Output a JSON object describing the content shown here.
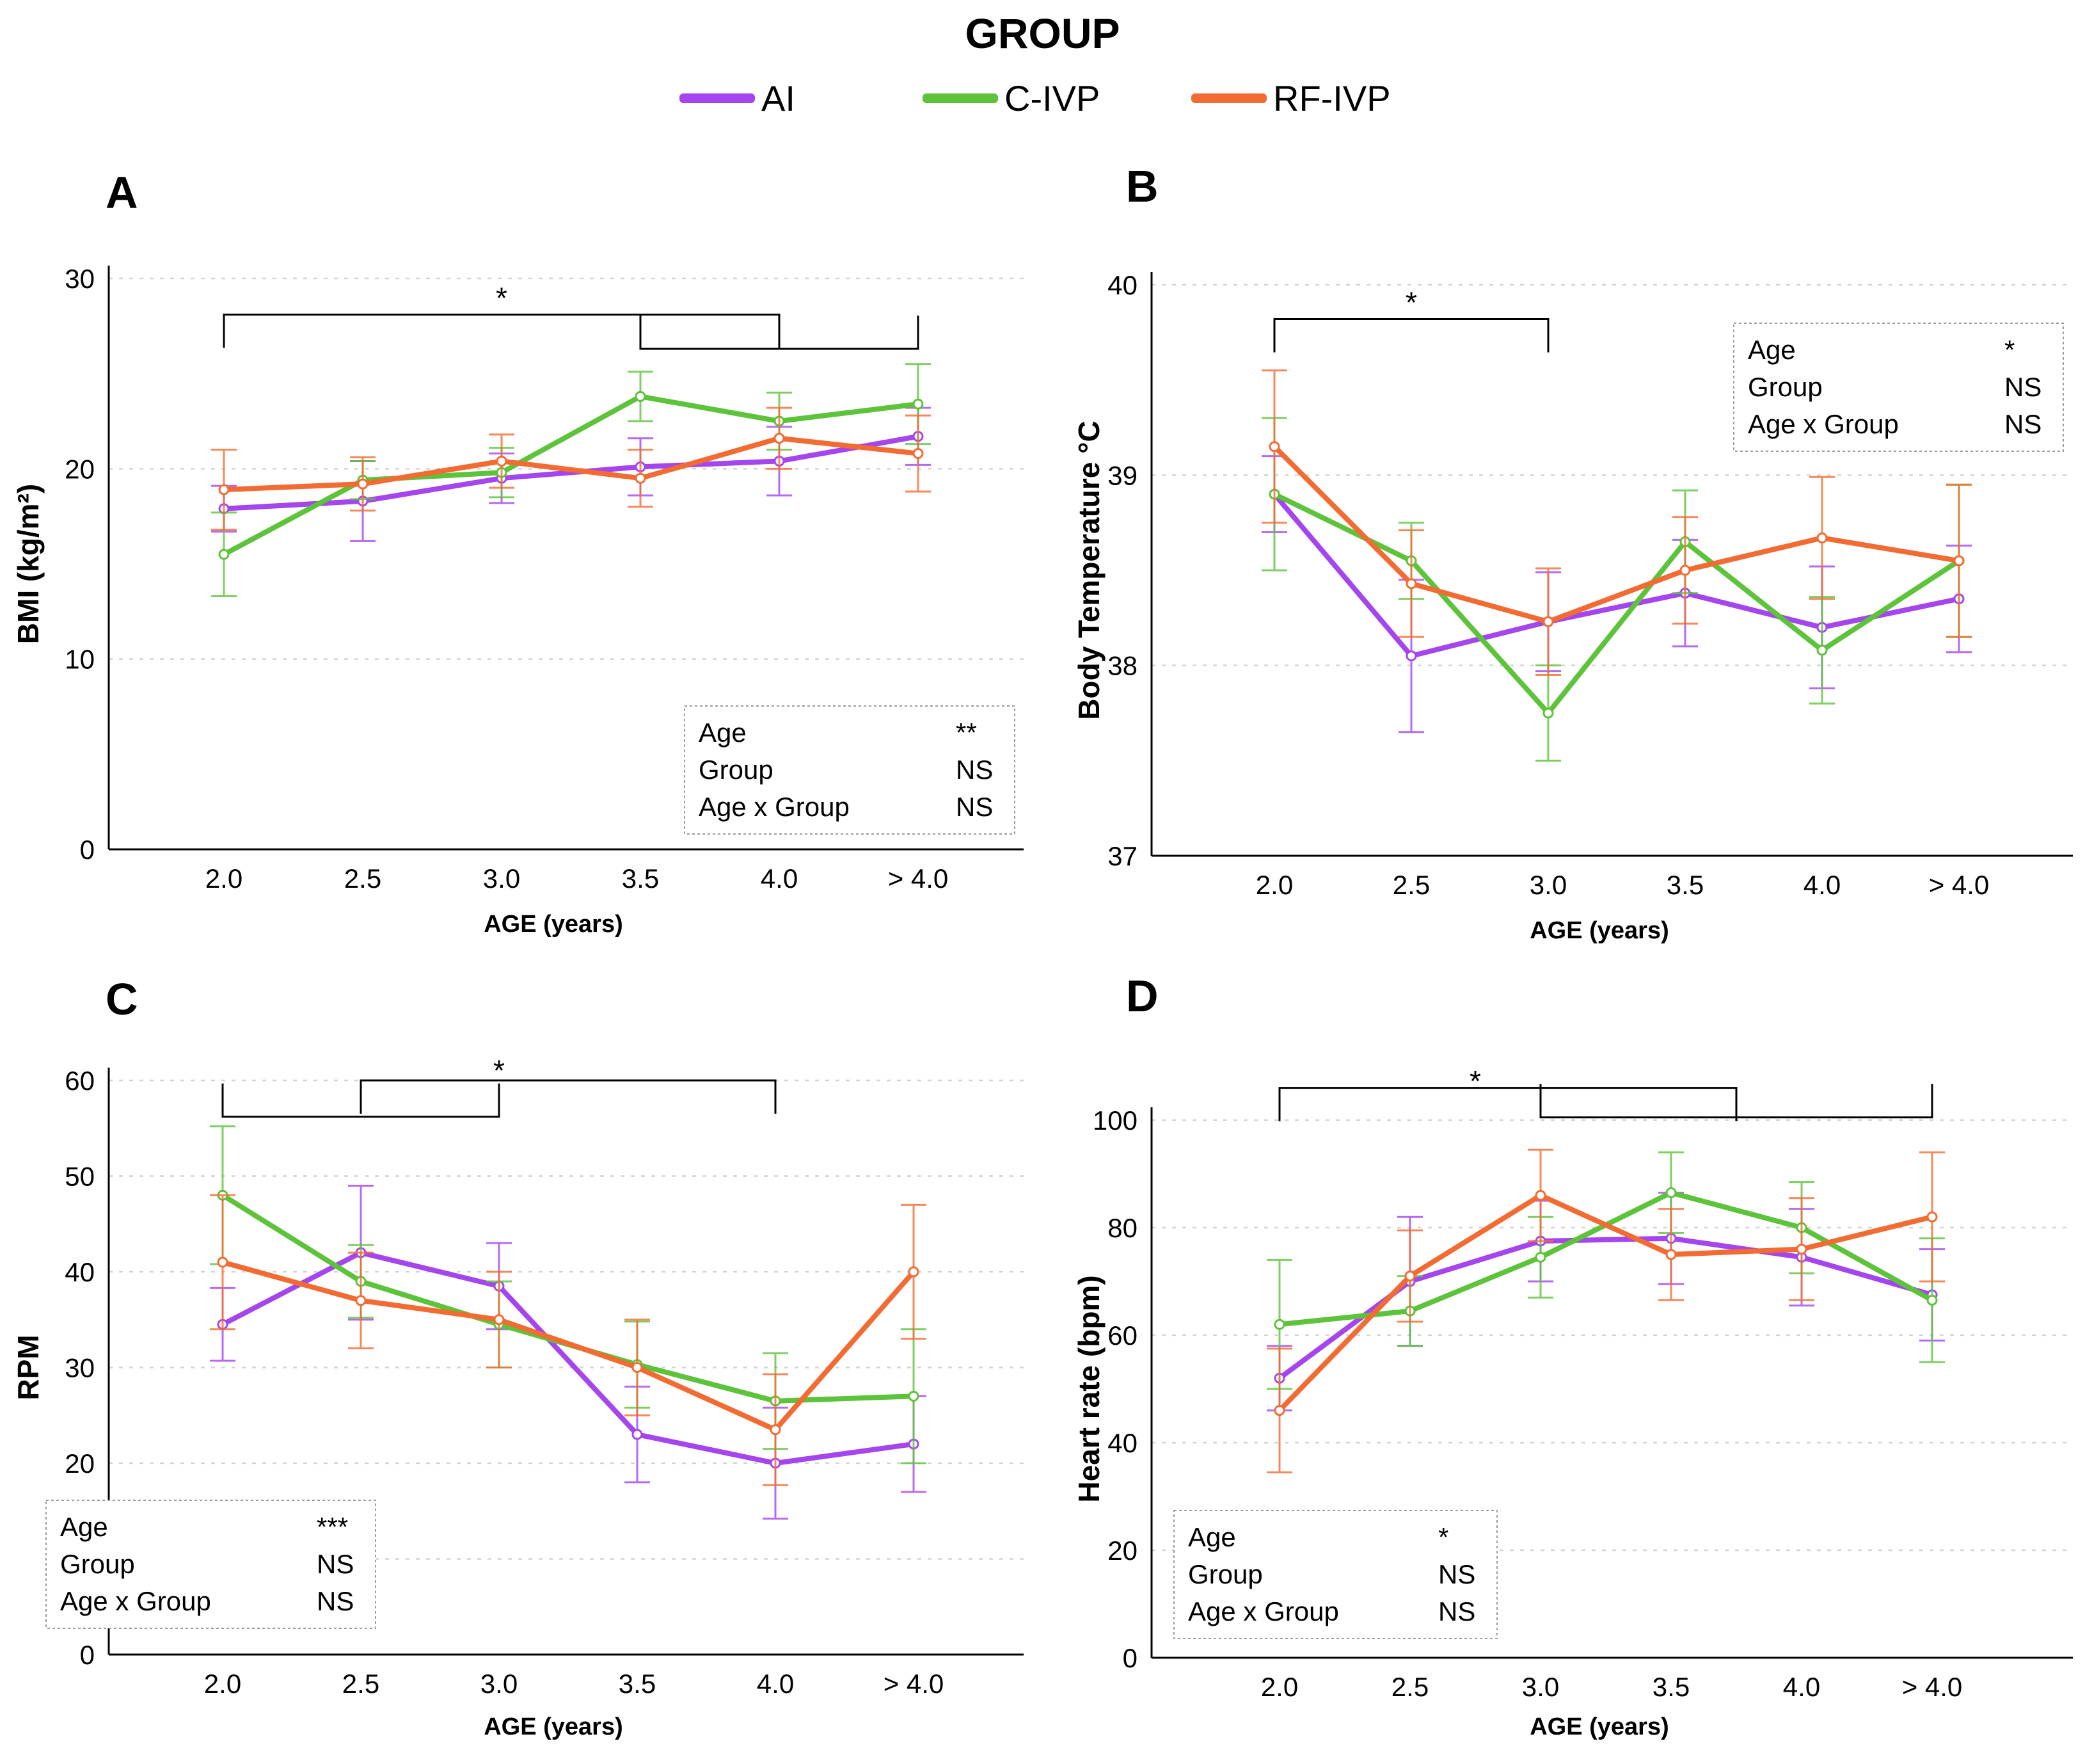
{
  "legend": {
    "title": "GROUP",
    "entries": [
      {
        "label": "AI",
        "color": "#a445ed"
      },
      {
        "label": "C-IVP",
        "color": "#5cc33a"
      },
      {
        "label": "RF-IVP",
        "color": "#f26b32"
      }
    ]
  },
  "chart_data": [
    {
      "panel": "A",
      "type": "line",
      "title": "",
      "xlabel": "AGE (years)",
      "ylabel": "BMI (kg/m²)",
      "categories": [
        "2.0",
        "2.5",
        "3.0",
        "3.5",
        "4.0",
        "> 4.0"
      ],
      "ylim": [
        0,
        30
      ],
      "yticks": [
        0,
        10,
        20,
        30
      ],
      "grid": "horizontal dotted",
      "series": [
        {
          "name": "AI",
          "color": "#a445ed",
          "values": [
            17.9,
            18.3,
            19.5,
            20.1,
            20.4,
            21.7
          ],
          "errors": [
            1.2,
            2.1,
            1.3,
            1.5,
            1.8,
            1.5
          ]
        },
        {
          "name": "C-IVP",
          "color": "#5cc33a",
          "values": [
            15.5,
            19.4,
            19.8,
            23.8,
            22.5,
            23.4
          ],
          "errors": [
            2.2,
            1.0,
            1.3,
            1.3,
            1.5,
            2.1
          ]
        },
        {
          "name": "RF-IVP",
          "color": "#f26b32",
          "values": [
            18.9,
            19.2,
            20.4,
            19.5,
            21.6,
            20.8
          ],
          "errors": [
            2.1,
            1.4,
            1.4,
            1.5,
            1.6,
            2.0
          ]
        }
      ],
      "brackets": [
        {
          "from": "2.0",
          "to": "4.0",
          "y": 28.1,
          "dir": "down"
        },
        {
          "from": "3.5",
          "to": "> 4.0",
          "y": 26.3,
          "dir": "up"
        }
      ],
      "significance": {
        "label": "*",
        "at": "3.0",
        "y": 28.9
      },
      "stats": {
        "position": "bottom-right",
        "rows": [
          {
            "term": "Age",
            "value": "**"
          },
          {
            "term": "Group",
            "value": "NS"
          },
          {
            "term": "Age x Group",
            "value": "NS"
          }
        ]
      }
    },
    {
      "panel": "B",
      "type": "line",
      "title": "",
      "xlabel": "AGE (years)",
      "ylabel": "Body Temperature °C",
      "categories": [
        "2.0",
        "2.5",
        "3.0",
        "3.5",
        "4.0",
        "> 4.0"
      ],
      "ylim": [
        37,
        40
      ],
      "yticks": [
        37,
        38,
        39,
        40
      ],
      "grid": "horizontal dotted",
      "series": [
        {
          "name": "AI",
          "color": "#a445ed",
          "values": [
            38.9,
            38.05,
            38.23,
            38.38,
            38.2,
            38.35
          ],
          "errors": [
            0.2,
            0.4,
            0.26,
            0.28,
            0.32,
            0.28
          ]
        },
        {
          "name": "C-IVP",
          "color": "#5cc33a",
          "values": [
            38.9,
            38.55,
            37.75,
            38.65,
            38.08,
            38.55
          ],
          "errors": [
            0.4,
            0.2,
            0.25,
            0.27,
            0.28,
            0.4
          ]
        },
        {
          "name": "RF-IVP",
          "color": "#f26b32",
          "values": [
            39.15,
            38.43,
            38.23,
            38.5,
            38.67,
            38.55
          ],
          "errors": [
            0.4,
            0.28,
            0.28,
            0.28,
            0.32,
            0.4
          ]
        }
      ],
      "brackets": [
        {
          "from": "2.0",
          "to": "3.0",
          "y": 39.82,
          "dir": "down"
        }
      ],
      "significance": {
        "label": "*",
        "at": "2.5",
        "y": 39.9
      },
      "stats": {
        "position": "top-right",
        "rows": [
          {
            "term": "Age",
            "value": "*"
          },
          {
            "term": "Group",
            "value": "NS"
          },
          {
            "term": "Age x Group",
            "value": "NS"
          }
        ]
      }
    },
    {
      "panel": "C",
      "type": "line",
      "title": "",
      "xlabel": "AGE (years)",
      "ylabel": "RPM",
      "categories": [
        "2.0",
        "2.5",
        "3.0",
        "3.5",
        "4.0",
        "> 4.0"
      ],
      "ylim": [
        0,
        60
      ],
      "yticks": [
        0,
        10,
        20,
        30,
        40,
        50,
        60
      ],
      "grid": "horizontal dotted",
      "series": [
        {
          "name": "AI",
          "color": "#a445ed",
          "values": [
            34.5,
            42,
            38.5,
            23,
            20,
            22
          ],
          "errors": [
            3.8,
            7,
            4.5,
            5,
            5.8,
            5
          ]
        },
        {
          "name": "C-IVP",
          "color": "#5cc33a",
          "values": [
            48,
            39,
            34.5,
            30.3,
            26.5,
            27
          ],
          "errors": [
            7.2,
            3.8,
            4.5,
            4.5,
            5,
            7
          ]
        },
        {
          "name": "RF-IVP",
          "color": "#f26b32",
          "values": [
            41,
            37,
            35,
            30,
            23.5,
            40
          ],
          "errors": [
            7,
            5,
            5,
            5,
            5.8,
            7
          ]
        }
      ],
      "brackets": [
        {
          "from": "2.0",
          "to": "3.0",
          "y": 56.2,
          "dir": "up"
        },
        {
          "from": "2.5",
          "to": "4.0",
          "y": 60,
          "dir": "down"
        }
      ],
      "significance": {
        "label": "*",
        "at": "3.0",
        "y": 60.9
      },
      "stats": {
        "position": "bottom-left",
        "rows": [
          {
            "term": "Age",
            "value": "***"
          },
          {
            "term": "Group",
            "value": "NS"
          },
          {
            "term": "Age x Group",
            "value": "NS"
          }
        ]
      }
    },
    {
      "panel": "D",
      "type": "line",
      "title": "",
      "xlabel": "AGE (years)",
      "ylabel": "Heart rate (bpm)",
      "categories": [
        "2.0",
        "2.5",
        "3.0",
        "3.5",
        "4.0",
        "> 4.0"
      ],
      "ylim": [
        0,
        100
      ],
      "yticks": [
        0,
        20,
        40,
        60,
        80,
        100
      ],
      "grid": "horizontal dotted",
      "series": [
        {
          "name": "AI",
          "color": "#a445ed",
          "values": [
            52,
            70,
            77.5,
            78,
            74.5,
            67.5
          ],
          "errors": [
            6,
            12,
            7.5,
            8.5,
            9,
            8.5
          ]
        },
        {
          "name": "C-IVP",
          "color": "#5cc33a",
          "values": [
            62,
            64.5,
            74.5,
            86.5,
            80,
            66.5
          ],
          "errors": [
            12,
            6.5,
            7.5,
            7.5,
            8.5,
            11.5
          ]
        },
        {
          "name": "RF-IVP",
          "color": "#f26b32",
          "values": [
            46,
            71,
            86,
            75,
            76,
            82
          ],
          "errors": [
            11.5,
            8.5,
            8.5,
            8.5,
            9.5,
            12
          ]
        }
      ],
      "brackets": [
        {
          "from": "2.0",
          "to": "3.75",
          "y": 106,
          "dir": "down"
        },
        {
          "from": "3.0",
          "to": "> 4.0",
          "y": 100.5,
          "dir": "up"
        }
      ],
      "significance": {
        "label": "*",
        "at": "2.75",
        "y": 107
      },
      "stats": {
        "position": "bottom-left",
        "rows": [
          {
            "term": "Age",
            "value": "*"
          },
          {
            "term": "Group",
            "value": "NS"
          },
          {
            "term": "Age x Group",
            "value": "NS"
          }
        ]
      }
    }
  ]
}
